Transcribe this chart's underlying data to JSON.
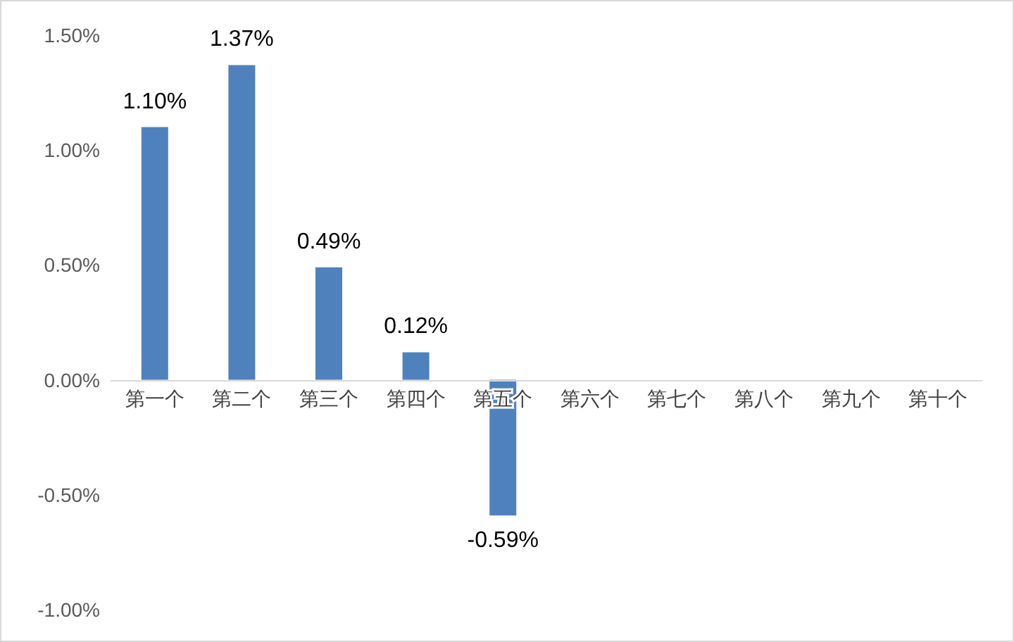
{
  "chart_data": {
    "type": "bar",
    "categories": [
      "第一个",
      "第二个",
      "第三个",
      "第四个",
      "第五个",
      "第六个",
      "第七个",
      "第八个",
      "第九个",
      "第十个"
    ],
    "values": [
      1.1,
      1.37,
      0.49,
      0.12,
      -0.59,
      null,
      null,
      null,
      null,
      null
    ],
    "value_labels": [
      "1.10%",
      "1.37%",
      "0.49%",
      "0.12%",
      "-0.59%",
      null,
      null,
      null,
      null,
      null
    ],
    "color": "#4f81bd",
    "ylim": [
      -1.0,
      1.5
    ],
    "yticks": [
      {
        "value": -1.0,
        "label": "-1.00%"
      },
      {
        "value": -0.5,
        "label": "-0.50%"
      },
      {
        "value": 0,
        "label": "0.00%"
      },
      {
        "value": 0.5,
        "label": "0.50%"
      },
      {
        "value": 1.0,
        "label": "1.00%"
      },
      {
        "value": 1.5,
        "label": "1.50%"
      }
    ],
    "data_labels": false
  }
}
